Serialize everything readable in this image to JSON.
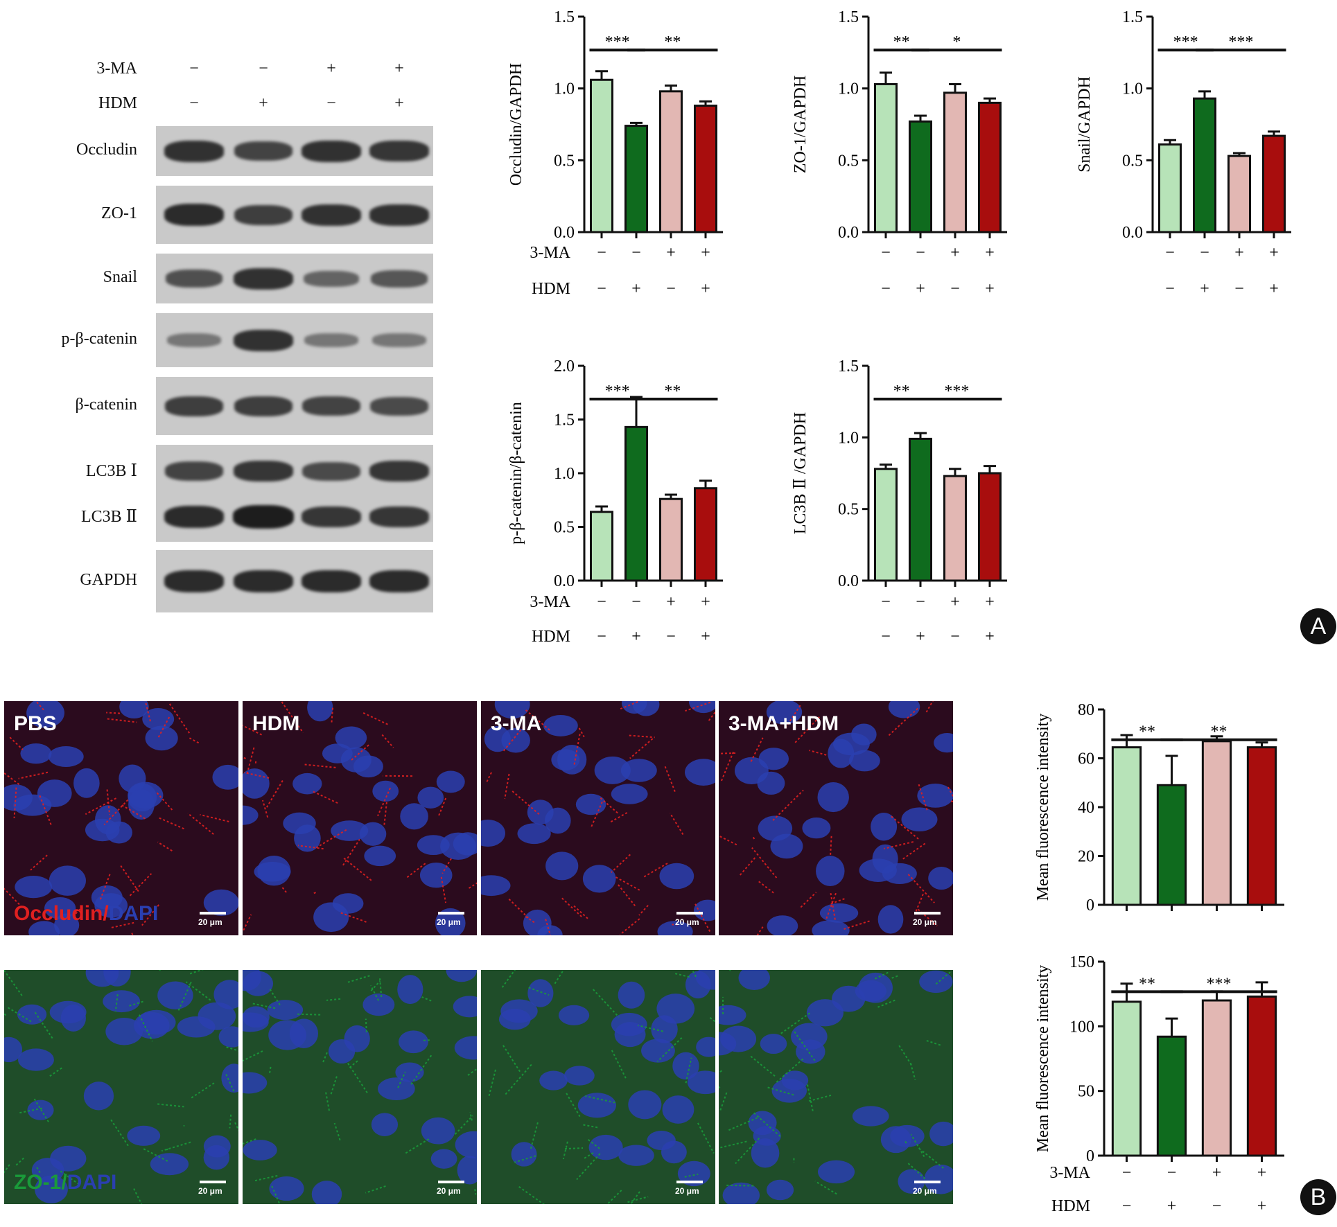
{
  "western_blot": {
    "treatments": [
      {
        "label": "3-MA",
        "signs": [
          "−",
          "−",
          "+",
          "+"
        ]
      },
      {
        "label": "HDM",
        "signs": [
          "−",
          "+",
          "−",
          "+"
        ]
      }
    ],
    "proteins": [
      {
        "name": "Occludin",
        "intensity": [
          0.85,
          0.7,
          0.85,
          0.8
        ]
      },
      {
        "name": "ZO-1",
        "intensity": [
          0.9,
          0.75,
          0.85,
          0.85
        ]
      },
      {
        "name": "Snail",
        "intensity": [
          0.6,
          0.85,
          0.45,
          0.55
        ]
      },
      {
        "name": "p-β-catenin",
        "intensity": [
          0.3,
          0.85,
          0.3,
          0.3
        ]
      },
      {
        "name": "β-catenin",
        "intensity": [
          0.75,
          0.75,
          0.7,
          0.65
        ]
      },
      {
        "name": "LC3B Ⅰ",
        "intensity": [
          0.7,
          0.8,
          0.65,
          0.8
        ]
      },
      {
        "name": "LC3B Ⅱ",
        "intensity": [
          0.9,
          1.0,
          0.8,
          0.8
        ]
      },
      {
        "name": "GAPDH",
        "intensity": [
          0.9,
          0.9,
          0.9,
          0.9
        ]
      }
    ]
  },
  "colors": {
    "pbs": "#b7e3b8",
    "hdm": "#0f6b1e",
    "ma3": "#e2b7b3",
    "ma3_hdm": "#a80d0d",
    "occludin_red": "#e02020",
    "dapi_blue": "#2a3fb0",
    "zo1_green": "#1a9a3a"
  },
  "chart_data": [
    {
      "type": "bar",
      "ylabel": "Occludin/GAPDH",
      "ylim": [
        0,
        1.5
      ],
      "yticks": [
        "0.0",
        "0.5",
        "1.0",
        "1.5"
      ],
      "values": [
        1.06,
        0.74,
        0.98,
        0.88
      ],
      "errors": [
        0.06,
        0.02,
        0.04,
        0.03
      ],
      "significance": [
        {
          "from": 0,
          "to": 1,
          "label": "***"
        },
        {
          "from": 1,
          "to": 3,
          "label": "**"
        }
      ]
    },
    {
      "type": "bar",
      "ylabel": "ZO-1/GAPDH",
      "ylim": [
        0,
        1.5
      ],
      "yticks": [
        "0.0",
        "0.5",
        "1.0",
        "1.5"
      ],
      "values": [
        1.03,
        0.77,
        0.97,
        0.9
      ],
      "errors": [
        0.08,
        0.04,
        0.06,
        0.03
      ],
      "significance": [
        {
          "from": 0,
          "to": 1,
          "label": "**"
        },
        {
          "from": 1,
          "to": 3,
          "label": "*"
        }
      ]
    },
    {
      "type": "bar",
      "ylabel": "Snail/GAPDH",
      "ylim": [
        0,
        1.5
      ],
      "yticks": [
        "0.0",
        "0.5",
        "1.0",
        "1.5"
      ],
      "values": [
        0.61,
        0.93,
        0.53,
        0.67
      ],
      "errors": [
        0.03,
        0.05,
        0.02,
        0.03
      ],
      "significance": [
        {
          "from": 0,
          "to": 1,
          "label": "***"
        },
        {
          "from": 1,
          "to": 3,
          "label": "***"
        }
      ]
    },
    {
      "type": "bar",
      "ylabel": "p-β-catenin/β-catenin",
      "ylim": [
        0,
        2.0
      ],
      "yticks": [
        "0.0",
        "0.5",
        "1.0",
        "1.5",
        "2.0"
      ],
      "values": [
        0.64,
        1.43,
        0.76,
        0.86
      ],
      "errors": [
        0.05,
        0.28,
        0.04,
        0.07
      ],
      "significance": [
        {
          "from": 0,
          "to": 1,
          "label": "***"
        },
        {
          "from": 1,
          "to": 3,
          "label": "**"
        }
      ]
    },
    {
      "type": "bar",
      "ylabel": "LC3B Ⅱ /GAPDH",
      "ylim": [
        0,
        1.5
      ],
      "yticks": [
        "0.0",
        "0.5",
        "1.0",
        "1.5"
      ],
      "values": [
        0.78,
        0.99,
        0.73,
        0.75
      ],
      "errors": [
        0.03,
        0.04,
        0.05,
        0.05
      ],
      "significance": [
        {
          "from": 0,
          "to": 1,
          "label": "**"
        },
        {
          "from": 1,
          "to": 3,
          "label": "***"
        }
      ]
    },
    {
      "type": "bar",
      "ylabel": "Mean fluorescence intensity",
      "ylim": [
        0,
        80
      ],
      "yticks": [
        "0",
        "20",
        "40",
        "60",
        "80"
      ],
      "values": [
        64.5,
        49.0,
        67.0,
        64.5
      ],
      "errors": [
        5.0,
        12.0,
        2.0,
        2.0
      ],
      "significance": [
        {
          "from": 0,
          "to": 1,
          "label": "**"
        },
        {
          "from": 1,
          "to": 3,
          "label": "**"
        }
      ]
    },
    {
      "type": "bar",
      "ylabel": "Mean fluorescence intensity",
      "ylim": [
        0,
        150
      ],
      "yticks": [
        "0",
        "50",
        "100",
        "150"
      ],
      "values": [
        119,
        92,
        120,
        123
      ],
      "errors": [
        14,
        14,
        7,
        11
      ],
      "significance": [
        {
          "from": 0,
          "to": 1,
          "label": "**"
        },
        {
          "from": 1,
          "to": 3,
          "label": "***"
        }
      ]
    }
  ],
  "microscopy": {
    "conditions": [
      "PBS",
      "HDM",
      "3-MA",
      "3-MA+HDM"
    ],
    "rows": [
      {
        "marker": "Occludin",
        "sep": "/",
        "counterstain": "DAPI",
        "color_key": "occludin_red"
      },
      {
        "marker": "ZO-1",
        "sep": "/",
        "counterstain": "DAPI",
        "color_key": "zo1_green"
      }
    ],
    "scale_bar": "20 μm"
  },
  "panels": [
    "A",
    "B"
  ]
}
